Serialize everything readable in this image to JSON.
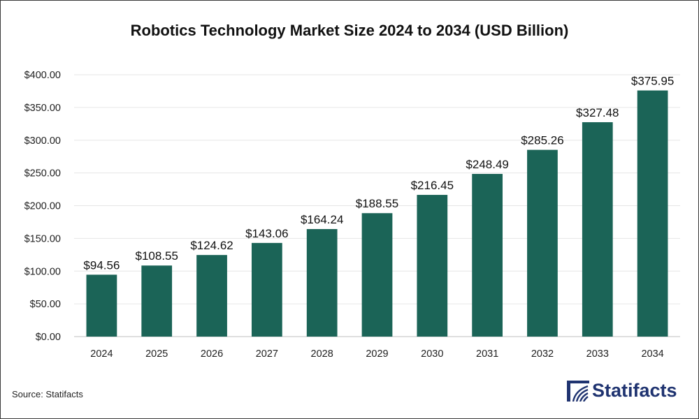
{
  "chart_data": {
    "type": "bar",
    "title": "Robotics Technology Market Size 2024 to 2034 (USD Billion)",
    "categories": [
      "2024",
      "2025",
      "2026",
      "2027",
      "2028",
      "2029",
      "2030",
      "2031",
      "2032",
      "2033",
      "2034"
    ],
    "values": [
      94.56,
      108.55,
      124.62,
      143.06,
      164.24,
      188.55,
      216.45,
      248.49,
      285.26,
      327.48,
      375.95
    ],
    "value_labels": [
      "$94.56",
      "$108.55",
      "$124.62",
      "$143.06",
      "$164.24",
      "$188.55",
      "$216.45",
      "$248.49",
      "$285.26",
      "$327.48",
      "$375.95"
    ],
    "ylim": [
      0,
      400
    ],
    "yticks": [
      0,
      50,
      100,
      150,
      200,
      250,
      300,
      350,
      400
    ],
    "ytick_labels": [
      "$0.00",
      "$50.00",
      "$100.00",
      "$150.00",
      "$200.00",
      "$250.00",
      "$300.00",
      "$350.00",
      "$400.00"
    ],
    "grid": true,
    "bar_color": "#1b6457"
  },
  "footer": {
    "source": "Source: Statifacts",
    "brand": "Statifacts",
    "brand_color": "#1f3370"
  }
}
